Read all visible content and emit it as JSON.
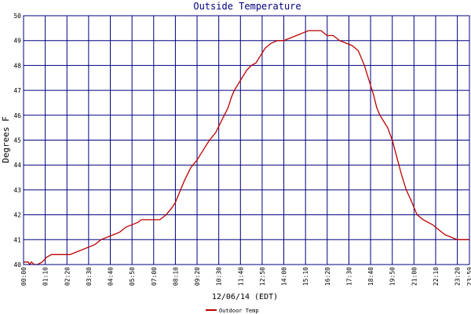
{
  "chart_data": {
    "type": "line",
    "title": "Outside Temperature",
    "xlabel": "12/06/14 (EDT)",
    "ylabel": "Degrees F",
    "ylim": [
      40,
      50
    ],
    "yticks": [
      40,
      41,
      42,
      43,
      44,
      45,
      46,
      47,
      48,
      49,
      50
    ],
    "xlim": [
      "00:00",
      "23:59"
    ],
    "xticks": [
      "00:00",
      "01:10",
      "02:20",
      "03:30",
      "04:40",
      "05:50",
      "07:00",
      "08:10",
      "09:20",
      "10:30",
      "11:40",
      "12:50",
      "14:00",
      "15:10",
      "16:20",
      "17:30",
      "18:40",
      "19:50",
      "21:00",
      "22:10",
      "23:20",
      "23:59"
    ],
    "grid": true,
    "legend": "bottom-left",
    "colors": {
      "series": "#bb0000",
      "grid": "#00007f",
      "title": "#00007f",
      "background": "#ffffff"
    },
    "series": [
      {
        "name": "Outdoor Temp",
        "x": [
          "00:00",
          "00:15",
          "00:20",
          "00:25",
          "00:35",
          "00:45",
          "01:00",
          "01:15",
          "01:30",
          "02:00",
          "02:30",
          "02:50",
          "03:10",
          "03:30",
          "03:50",
          "04:10",
          "04:30",
          "04:50",
          "05:10",
          "05:30",
          "05:50",
          "06:10",
          "06:20",
          "06:40",
          "07:00",
          "07:20",
          "07:40",
          "08:00",
          "08:10",
          "08:20",
          "08:30",
          "08:40",
          "09:00",
          "09:20",
          "09:40",
          "10:00",
          "10:20",
          "10:40",
          "11:00",
          "11:10",
          "11:20",
          "11:30",
          "11:40",
          "12:00",
          "12:15",
          "12:30",
          "12:45",
          "12:50",
          "13:00",
          "13:10",
          "13:20",
          "13:40",
          "14:00",
          "14:20",
          "14:40",
          "15:00",
          "15:20",
          "15:40",
          "16:00",
          "16:10",
          "16:20",
          "16:40",
          "17:00",
          "17:20",
          "17:40",
          "18:00",
          "18:20",
          "18:40",
          "18:50",
          "19:00",
          "19:10",
          "19:20",
          "19:35",
          "19:50",
          "20:05",
          "20:20",
          "20:35",
          "20:50",
          "21:00",
          "21:10",
          "21:20",
          "21:30",
          "21:45",
          "22:00",
          "22:20",
          "22:40",
          "23:00",
          "23:20",
          "23:40",
          "23:59"
        ],
        "values": [
          40.1,
          40.1,
          40.0,
          40.1,
          40.0,
          40.0,
          40.1,
          40.3,
          40.4,
          40.4,
          40.4,
          40.5,
          40.6,
          40.7,
          40.8,
          41.0,
          41.1,
          41.2,
          41.3,
          41.5,
          41.6,
          41.7,
          41.8,
          41.8,
          41.8,
          41.8,
          42.0,
          42.3,
          42.5,
          42.8,
          43.1,
          43.4,
          43.9,
          44.2,
          44.6,
          45.0,
          45.3,
          45.8,
          46.3,
          46.7,
          47.0,
          47.2,
          47.4,
          47.8,
          48.0,
          48.1,
          48.4,
          48.5,
          48.7,
          48.8,
          48.9,
          49.0,
          49.0,
          49.1,
          49.2,
          49.3,
          49.4,
          49.4,
          49.4,
          49.3,
          49.2,
          49.2,
          49.0,
          48.9,
          48.8,
          48.6,
          48.0,
          47.2,
          46.8,
          46.3,
          46.0,
          45.8,
          45.5,
          45.0,
          44.3,
          43.6,
          43.0,
          42.6,
          42.3,
          42.0,
          41.9,
          41.8,
          41.7,
          41.6,
          41.4,
          41.2,
          41.1,
          41.0,
          41.0,
          41.0
        ]
      }
    ]
  }
}
